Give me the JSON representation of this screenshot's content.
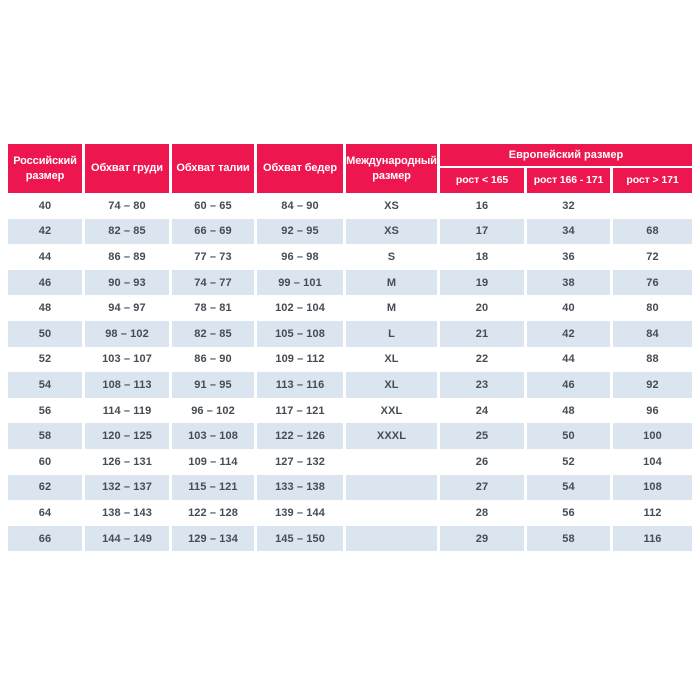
{
  "colors": {
    "header_bg": "#ed164f",
    "header_text": "#ffffff",
    "stripe_bg": "#dbe5f0",
    "body_text": "#454c54",
    "page_bg": "#ffffff"
  },
  "chart_data": {
    "type": "table",
    "title": "",
    "columns": [
      "Российский размер",
      "Обхват груди",
      "Обхват талии",
      "Обхват бедер",
      "Международный размер"
    ],
    "group_header": {
      "label": "Европейский размер",
      "subcolumns": [
        "рост < 165",
        "рост 166 - 171",
        "рост > 171"
      ]
    },
    "rows": [
      [
        "40",
        "74 – 80",
        "60 – 65",
        "84 – 90",
        "XS",
        "16",
        "32",
        ""
      ],
      [
        "42",
        "82 – 85",
        "66 – 69",
        "92 – 95",
        "XS",
        "17",
        "34",
        "68"
      ],
      [
        "44",
        "86 – 89",
        "77 – 73",
        "96 – 98",
        "S",
        "18",
        "36",
        "72"
      ],
      [
        "46",
        "90 – 93",
        "74 – 77",
        "99 – 101",
        "M",
        "19",
        "38",
        "76"
      ],
      [
        "48",
        "94 – 97",
        "78 – 81",
        "102 – 104",
        "M",
        "20",
        "40",
        "80"
      ],
      [
        "50",
        "98 – 102",
        "82 – 85",
        "105 – 108",
        "L",
        "21",
        "42",
        "84"
      ],
      [
        "52",
        "103 – 107",
        "86 – 90",
        "109 – 112",
        "XL",
        "22",
        "44",
        "88"
      ],
      [
        "54",
        "108 – 113",
        "91 – 95",
        "113 – 116",
        "XL",
        "23",
        "46",
        "92"
      ],
      [
        "56",
        "114 – 119",
        "96 – 102",
        "117 – 121",
        "XXL",
        "24",
        "48",
        "96"
      ],
      [
        "58",
        "120 – 125",
        "103 – 108",
        "122 – 126",
        "XXXL",
        "25",
        "50",
        "100"
      ],
      [
        "60",
        "126 – 131",
        "109 – 114",
        "127 – 132",
        "",
        "26",
        "52",
        "104"
      ],
      [
        "62",
        "132 – 137",
        "115 – 121",
        "133 – 138",
        "",
        "27",
        "54",
        "108"
      ],
      [
        "64",
        "138 – 143",
        "122 – 128",
        "139 – 144",
        "",
        "28",
        "56",
        "112"
      ],
      [
        "66",
        "144 – 149",
        "129 – 134",
        "145 – 150",
        "",
        "29",
        "58",
        "116"
      ]
    ]
  }
}
